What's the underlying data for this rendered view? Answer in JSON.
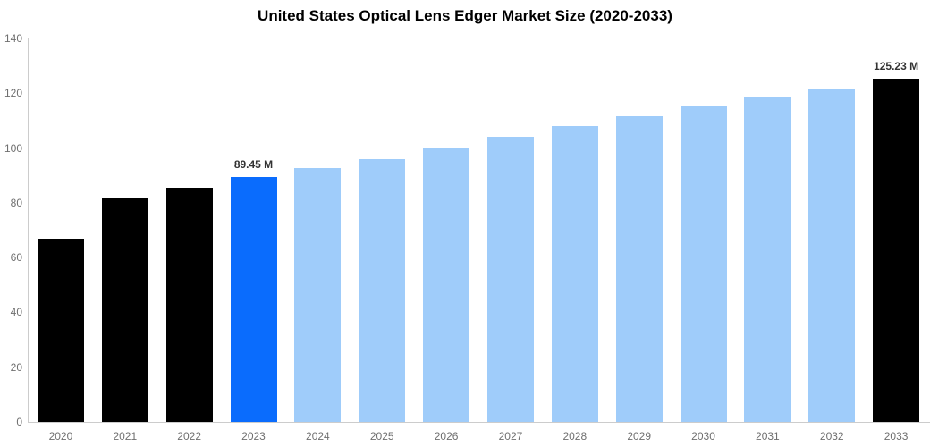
{
  "title": "United States Optical Lens Edger Market Size (2020-2033)",
  "colors": {
    "historical_bar": "#000000",
    "highlight_bar": "#0a6cfd",
    "forecast_bar": "#9fccfa",
    "final_bar": "#000000",
    "axis_line": "#cccccc",
    "tick_text": "#6f6f6f",
    "data_label_text": "#333333",
    "title_text": "#000000"
  },
  "chart_data": {
    "type": "bar",
    "title": "United States Optical Lens Edger Market Size (2020-2033)",
    "xlabel": "",
    "ylabel": "",
    "categories": [
      "2020",
      "2021",
      "2022",
      "2023",
      "2024",
      "2025",
      "2026",
      "2027",
      "2028",
      "2029",
      "2030",
      "2031",
      "2032",
      "2033"
    ],
    "values": [
      66.8,
      81.6,
      85.4,
      89.45,
      92.6,
      96.1,
      99.8,
      104.1,
      107.9,
      111.5,
      115.2,
      118.7,
      121.8,
      125.23
    ],
    "unit": "M",
    "bar_colors": [
      "#000000",
      "#000000",
      "#000000",
      "#0a6cfd",
      "#9fccfa",
      "#9fccfa",
      "#9fccfa",
      "#9fccfa",
      "#9fccfa",
      "#9fccfa",
      "#9fccfa",
      "#9fccfa",
      "#9fccfa",
      "#000000"
    ],
    "data_labels": [
      {
        "index": 3,
        "text": "89.45 M"
      },
      {
        "index": 13,
        "text": "125.23 M"
      }
    ],
    "ylim": [
      0,
      140
    ],
    "ytick_step": 20,
    "ytick_labels": [
      "0",
      "20",
      "40",
      "60",
      "80",
      "100",
      "120",
      "140"
    ],
    "grid": false,
    "legend": false
  }
}
